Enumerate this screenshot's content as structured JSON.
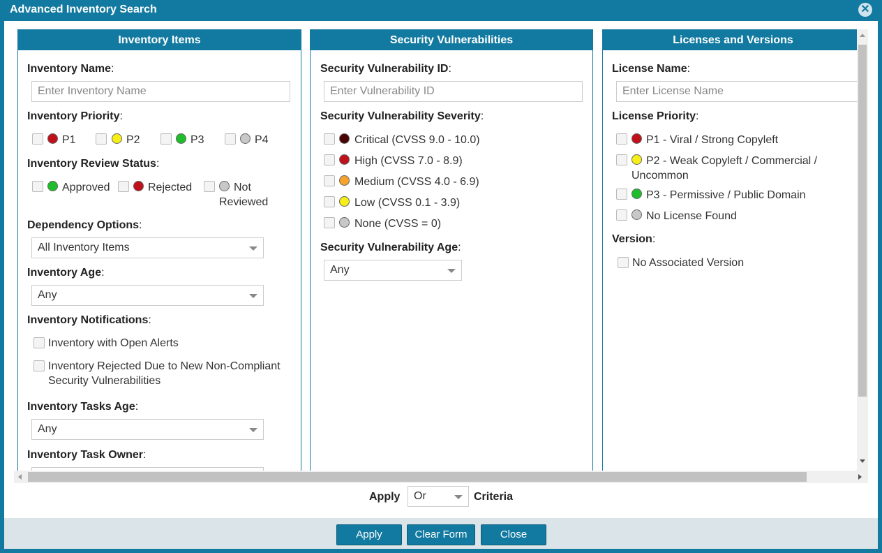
{
  "dialog": {
    "title": "Advanced Inventory Search"
  },
  "inventory_items": {
    "heading": "Inventory Items",
    "name_label": "Inventory Name",
    "name_placeholder": "Enter Inventory Name",
    "priority_label": "Inventory Priority",
    "priorities": [
      {
        "label": "P1",
        "color": "#c0111b"
      },
      {
        "label": "P2",
        "color": "#f5ee17"
      },
      {
        "label": "P3",
        "color": "#1ebd2a"
      },
      {
        "label": "P4",
        "color": "#c8c8c8"
      }
    ],
    "review_label": "Inventory Review Status",
    "review_statuses": [
      {
        "label": "Approved",
        "color": "#1ebd2a"
      },
      {
        "label": "Rejected",
        "color": "#c0111b"
      },
      {
        "label_line1": "Not",
        "label_line2": "Reviewed",
        "color": "#c8c8c8"
      }
    ],
    "dependency_label": "Dependency Options",
    "dependency_value": "All Inventory Items",
    "age_label": "Inventory Age",
    "age_value": "Any",
    "notifications_label": "Inventory Notifications",
    "notifications": [
      {
        "line1": "Inventory with Open Alerts"
      },
      {
        "line1": "Inventory Rejected Due to New Non-Compliant",
        "line2": "Security Vulnerabilities"
      }
    ],
    "tasks_age_label": "Inventory Tasks Age",
    "tasks_age_value": "Any",
    "task_owner_label": "Inventory Task Owner"
  },
  "security": {
    "heading": "Security Vulnerabilities",
    "id_label": "Security Vulnerability ID",
    "id_placeholder": "Enter Vulnerability ID",
    "severity_label": "Security Vulnerability Severity",
    "severities": [
      {
        "label": "Critical (CVSS 9.0 - 10.0)",
        "color": "#4a0303"
      },
      {
        "label": "High (CVSS 7.0 - 8.9)",
        "color": "#c0111b"
      },
      {
        "label": "Medium (CVSS 4.0 - 6.9)",
        "color": "#f7a22c"
      },
      {
        "label": "Low (CVSS 0.1 - 3.9)",
        "color": "#f5ee17"
      },
      {
        "label": "None (CVSS = 0)",
        "color": "#c8c8c8"
      }
    ],
    "age_label": "Security Vulnerability Age",
    "age_value": "Any"
  },
  "licenses": {
    "heading": "Licenses and Versions",
    "name_label": "License Name",
    "name_placeholder": "Enter License Name",
    "priority_label": "License Priority",
    "priorities": [
      {
        "line1": "P1 - Viral / Strong Copyleft",
        "color": "#c0111b"
      },
      {
        "line1": "P2 - Weak Copyleft / Commercial /",
        "line2": "Uncommon",
        "color": "#f5ee17"
      },
      {
        "line1": "P3 - Permissive / Public Domain",
        "color": "#1ebd2a"
      },
      {
        "line1": "No License Found",
        "color": "#c8c8c8"
      }
    ],
    "version_label": "Version",
    "version_option": "No Associated Version"
  },
  "criteria": {
    "prefix": "Apply",
    "value": "Or",
    "suffix": "Criteria"
  },
  "footer": {
    "apply": "Apply",
    "clear": "Clear Form",
    "close": "Close"
  }
}
